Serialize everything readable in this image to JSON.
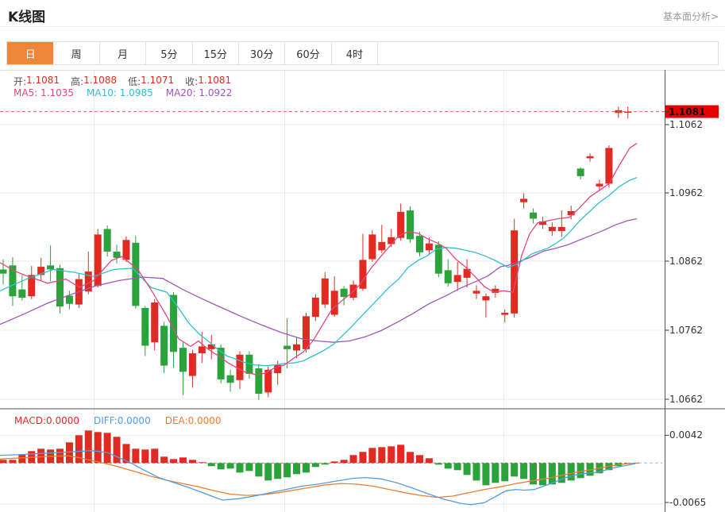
{
  "header": {
    "title": "K线图",
    "link": "基本面分析>"
  },
  "tabs": [
    "日",
    "周",
    "月",
    "5分",
    "15分",
    "30分",
    "60分",
    "4时"
  ],
  "active_tab": "日",
  "legend": {
    "open_label": "开:",
    "open": "1.1081",
    "high_label": "高:",
    "high": "1.1088",
    "low_label": "低:",
    "low": "1.1071",
    "close_label": "收:",
    "close": "1.1081",
    "ma5": "MA5: 1.1035",
    "ma10": "MA10: 1.0985",
    "ma20": "MA20: 1.0922"
  },
  "macd_legend": {
    "macd": "MACD:0.0000",
    "diff": "DIFF:0.0000",
    "dea": "DEA:0.0000"
  },
  "price_tag": "1.1081",
  "colors": {
    "up": "#e12b22",
    "down": "#2aa33b",
    "ma5": "#e3477d",
    "ma10": "#30bfcf",
    "ma20": "#9e56ba",
    "diff": "#559ce0",
    "dea": "#ee7c2f",
    "price_line": "#e06060",
    "price_tag_bg": "#e60000",
    "grid": "#ebebeb",
    "axis": "#555",
    "tab_active": "#ee8537"
  },
  "chart_data": {
    "type": "candlestick",
    "current_price": 1.1081,
    "y_ticks": [
      1.1062,
      1.0962,
      1.0862,
      1.0762,
      1.0662
    ],
    "y_ticks_labels": [
      "1.1062",
      "1.0962",
      "1.0862",
      "1.0762",
      "1.0662"
    ],
    "macd_ticks": [
      0.0042,
      -0.0065
    ],
    "macd_ticks_labels": [
      "0.0042",
      "-0.0065"
    ],
    "candles": [
      [
        1.0851,
        1.0866,
        1.0829,
        1.0845
      ],
      [
        1.0857,
        1.0869,
        1.0798,
        1.0812
      ],
      [
        1.0822,
        1.0843,
        1.0806,
        1.081
      ],
      [
        1.0812,
        1.0856,
        1.0808,
        1.0843
      ],
      [
        1.0843,
        1.0868,
        1.0834,
        1.0855
      ],
      [
        1.0857,
        1.0886,
        1.0834,
        1.0851
      ],
      [
        1.0853,
        1.0858,
        1.0787,
        1.0797
      ],
      [
        1.0813,
        1.082,
        1.0793,
        1.0801
      ],
      [
        1.08,
        1.0845,
        1.0795,
        1.0837
      ],
      [
        1.0819,
        1.0877,
        1.0815,
        1.0848
      ],
      [
        1.0827,
        1.091,
        1.0825,
        1.0902
      ],
      [
        1.091,
        1.0915,
        1.087,
        1.0877
      ],
      [
        1.0877,
        1.0887,
        1.086,
        1.0868
      ],
      [
        1.0865,
        1.0899,
        1.0862,
        1.0894
      ],
      [
        1.089,
        1.09,
        1.0794,
        1.0798
      ],
      [
        1.0795,
        1.0798,
        1.0725,
        1.074
      ],
      [
        1.0745,
        1.0808,
        1.0733,
        1.0803
      ],
      [
        1.0769,
        1.0775,
        1.07,
        1.0711
      ],
      [
        1.0814,
        1.0818,
        1.0708,
        1.0731
      ],
      [
        1.0737,
        1.0745,
        1.0668,
        1.0702
      ],
      [
        1.0696,
        1.0734,
        1.0679,
        1.0729
      ],
      [
        1.0729,
        1.076,
        1.0715,
        1.0739
      ],
      [
        1.0735,
        1.0756,
        1.072,
        1.0742
      ],
      [
        1.0737,
        1.0742,
        1.0685,
        1.0691
      ],
      [
        1.0697,
        1.0705,
        1.0673,
        1.0686
      ],
      [
        1.069,
        1.0732,
        1.0677,
        1.0727
      ],
      [
        1.0727,
        1.0732,
        1.0692,
        1.0699
      ],
      [
        1.0707,
        1.0713,
        1.0661,
        1.067
      ],
      [
        1.0672,
        1.071,
        1.0665,
        1.0705
      ],
      [
        1.07,
        1.0718,
        1.0683,
        1.0712
      ],
      [
        1.074,
        1.078,
        1.0707,
        1.0735
      ],
      [
        1.0733,
        1.0752,
        1.0722,
        1.0742
      ],
      [
        1.0735,
        1.0788,
        1.073,
        1.0783
      ],
      [
        1.0782,
        1.0815,
        1.0776,
        1.081
      ],
      [
        1.08,
        1.0847,
        1.0795,
        1.0838
      ],
      [
        1.0785,
        1.0841,
        1.0782,
        1.082
      ],
      [
        1.0823,
        1.0827,
        1.0799,
        1.0811
      ],
      [
        1.081,
        1.0835,
        1.0806,
        1.0829
      ],
      [
        1.0823,
        1.0903,
        1.082,
        1.0865
      ],
      [
        1.0866,
        1.0908,
        1.0862,
        1.0902
      ],
      [
        1.0879,
        1.0916,
        1.0875,
        1.0891
      ],
      [
        1.0888,
        1.091,
        1.0884,
        1.0898
      ],
      [
        1.0897,
        1.0947,
        1.0893,
        1.0935
      ],
      [
        1.0937,
        1.0943,
        1.089,
        1.0895
      ],
      [
        1.09,
        1.0906,
        1.087,
        1.0876
      ],
      [
        1.0879,
        1.0898,
        1.0873,
        1.0889
      ],
      [
        1.0887,
        1.0892,
        1.084,
        1.0845
      ],
      [
        1.085,
        1.0866,
        1.0826,
        1.0831
      ],
      [
        1.0833,
        1.0862,
        1.082,
        1.0843
      ],
      [
        1.0839,
        1.0866,
        1.0825,
        1.0852
      ],
      [
        1.0816,
        1.0828,
        1.0808,
        1.082
      ],
      [
        1.0806,
        1.0816,
        1.0781,
        1.0812
      ],
      [
        1.0817,
        1.0828,
        1.081,
        1.0823
      ],
      [
        1.0785,
        1.0793,
        1.0774,
        1.0788
      ],
      [
        1.0787,
        1.0925,
        1.0781,
        1.0908
      ],
      [
        1.0949,
        1.0962,
        1.094,
        1.0954
      ],
      [
        1.0934,
        1.094,
        1.0918,
        1.0925
      ],
      [
        1.0916,
        1.0928,
        1.091,
        1.0921
      ],
      [
        1.0907,
        1.092,
        1.09,
        1.0913
      ],
      [
        1.0907,
        1.0937,
        1.0898,
        1.0913
      ],
      [
        1.093,
        1.0944,
        1.0924,
        1.0936
      ],
      [
        1.0998,
        1.1,
        1.0982,
        1.0987
      ],
      [
        1.1013,
        1.102,
        1.1008,
        1.1016
      ],
      [
        1.0972,
        1.0982,
        1.0966,
        1.0976
      ],
      [
        1.0976,
        1.1032,
        1.097,
        1.1028
      ],
      [
        1.1079,
        1.1088,
        1.1072,
        1.1083
      ],
      [
        1.1081,
        1.1088,
        1.1071,
        1.1081
      ]
    ],
    "ma5_points": [
      [
        0,
        1.0861
      ],
      [
        20,
        1.0848
      ],
      [
        33,
        1.0842
      ],
      [
        60,
        1.0831
      ],
      [
        83,
        1.0837
      ],
      [
        100,
        1.0825
      ],
      [
        118,
        1.0835
      ],
      [
        140,
        1.0864
      ],
      [
        153,
        1.087
      ],
      [
        173,
        1.0852
      ],
      [
        190,
        1.0822
      ],
      [
        210,
        1.0783
      ],
      [
        225,
        1.075
      ],
      [
        240,
        1.0739
      ],
      [
        250,
        1.0747
      ],
      [
        262,
        1.0735
      ],
      [
        274,
        1.0726
      ],
      [
        286,
        1.0716
      ],
      [
        298,
        1.0708
      ],
      [
        310,
        1.0701
      ],
      [
        322,
        1.0698
      ],
      [
        334,
        1.07
      ],
      [
        346,
        1.0708
      ],
      [
        358,
        1.0712
      ],
      [
        370,
        1.0722
      ],
      [
        382,
        1.0731
      ],
      [
        394,
        1.0747
      ],
      [
        406,
        1.077
      ],
      [
        418,
        1.0793
      ],
      [
        430,
        1.0805
      ],
      [
        442,
        1.0816
      ],
      [
        454,
        1.083
      ],
      [
        466,
        1.0851
      ],
      [
        478,
        1.0868
      ],
      [
        490,
        1.0884
      ],
      [
        502,
        1.09
      ],
      [
        514,
        1.0906
      ],
      [
        526,
        1.0904
      ],
      [
        538,
        1.0896
      ],
      [
        550,
        1.089
      ],
      [
        562,
        1.0882
      ],
      [
        574,
        1.0866
      ],
      [
        586,
        1.0855
      ],
      [
        598,
        1.0841
      ],
      [
        610,
        1.0826
      ],
      [
        622,
        1.0818
      ],
      [
        634,
        1.082
      ],
      [
        646,
        1.0818
      ],
      [
        657,
        1.0872
      ],
      [
        667,
        1.0903
      ],
      [
        677,
        1.0919
      ],
      [
        690,
        1.0922
      ],
      [
        703,
        1.0925
      ],
      [
        717,
        1.0927
      ],
      [
        730,
        1.0941
      ],
      [
        743,
        1.0957
      ],
      [
        757,
        1.0968
      ],
      [
        767,
        1.0976
      ],
      [
        780,
        1.1003
      ],
      [
        793,
        1.1028
      ],
      [
        802,
        1.1035
      ]
    ],
    "ma10_points": [
      [
        0,
        1.082
      ],
      [
        35,
        1.0838
      ],
      [
        67,
        1.0851
      ],
      [
        93,
        1.0847
      ],
      [
        118,
        1.0841
      ],
      [
        143,
        1.0851
      ],
      [
        167,
        1.0853
      ],
      [
        190,
        1.0825
      ],
      [
        210,
        1.0818
      ],
      [
        225,
        1.0795
      ],
      [
        237,
        1.0774
      ],
      [
        250,
        1.0758
      ],
      [
        262,
        1.0747
      ],
      [
        274,
        1.0735
      ],
      [
        286,
        1.0725
      ],
      [
        298,
        1.072
      ],
      [
        310,
        1.0715
      ],
      [
        322,
        1.0712
      ],
      [
        334,
        1.0711
      ],
      [
        346,
        1.0712
      ],
      [
        358,
        1.0714
      ],
      [
        370,
        1.0715
      ],
      [
        382,
        1.0718
      ],
      [
        394,
        1.0725
      ],
      [
        406,
        1.0732
      ],
      [
        420,
        1.0742
      ],
      [
        442,
        1.0767
      ],
      [
        466,
        1.0796
      ],
      [
        490,
        1.0825
      ],
      [
        502,
        1.0837
      ],
      [
        514,
        1.0854
      ],
      [
        526,
        1.0864
      ],
      [
        538,
        1.0871
      ],
      [
        550,
        1.0881
      ],
      [
        562,
        1.0883
      ],
      [
        574,
        1.0882
      ],
      [
        586,
        1.0879
      ],
      [
        598,
        1.0876
      ],
      [
        610,
        1.0871
      ],
      [
        622,
        1.0865
      ],
      [
        634,
        1.0858
      ],
      [
        640,
        1.0854
      ],
      [
        652,
        1.0859
      ],
      [
        670,
        1.0874
      ],
      [
        690,
        1.0882
      ],
      [
        700,
        1.0889
      ],
      [
        710,
        1.0897
      ],
      [
        717,
        1.0905
      ],
      [
        730,
        1.0922
      ],
      [
        743,
        1.0936
      ],
      [
        753,
        1.0947
      ],
      [
        767,
        1.0959
      ],
      [
        780,
        1.0972
      ],
      [
        793,
        1.0981
      ],
      [
        802,
        1.0985
      ]
    ],
    "ma20_points": [
      [
        0,
        1.0771
      ],
      [
        30,
        1.0786
      ],
      [
        60,
        1.0802
      ],
      [
        90,
        1.0815
      ],
      [
        120,
        1.0827
      ],
      [
        150,
        1.0835
      ],
      [
        180,
        1.084
      ],
      [
        205,
        1.0838
      ],
      [
        230,
        1.0822
      ],
      [
        255,
        1.0808
      ],
      [
        280,
        1.0795
      ],
      [
        305,
        1.0782
      ],
      [
        330,
        1.077
      ],
      [
        355,
        1.0759
      ],
      [
        380,
        1.075
      ],
      [
        400,
        1.0747
      ],
      [
        420,
        1.0745
      ],
      [
        440,
        1.0747
      ],
      [
        460,
        1.0753
      ],
      [
        480,
        1.0762
      ],
      [
        500,
        1.0774
      ],
      [
        520,
        1.0787
      ],
      [
        540,
        1.0801
      ],
      [
        560,
        1.0812
      ],
      [
        580,
        1.0824
      ],
      [
        600,
        1.0834
      ],
      [
        615,
        1.0842
      ],
      [
        630,
        1.0855
      ],
      [
        640,
        1.0857
      ],
      [
        655,
        1.0863
      ],
      [
        670,
        1.087
      ],
      [
        685,
        1.0878
      ],
      [
        700,
        1.0882
      ],
      [
        715,
        1.0887
      ],
      [
        730,
        1.0894
      ],
      [
        745,
        1.0901
      ],
      [
        760,
        1.0908
      ],
      [
        775,
        1.0916
      ],
      [
        790,
        1.0922
      ],
      [
        802,
        1.0925
      ]
    ],
    "macd_histogram": [
      0.00048,
      0.00048,
      0.00132,
      0.0018,
      0.00216,
      0.00204,
      0.00216,
      0.00312,
      0.0042,
      0.00492,
      0.00468,
      0.00456,
      0.00396,
      0.00288,
      0.00216,
      0.00204,
      0.00216,
      0.00096,
      0.0006,
      0.00084,
      0.00048,
      0.00012,
      -0.00048,
      -0.00096,
      -0.00084,
      -0.00144,
      -0.0012,
      -0.00204,
      -0.00264,
      -0.0024,
      -0.00216,
      -0.00168,
      -0.00144,
      -0.0006,
      -0.00024,
      0.00024,
      0.00048,
      0.0012,
      0.00168,
      0.00228,
      0.0024,
      0.00252,
      0.00276,
      0.00168,
      0.0012,
      0.00072,
      -0.00024,
      -0.00084,
      -0.00108,
      -0.0018,
      -0.00264,
      -0.00336,
      -0.003,
      -0.00276,
      -0.00204,
      -0.0024,
      -0.00324,
      -0.00336,
      -0.00324,
      -0.003,
      -0.00264,
      -0.00228,
      -0.00192,
      -0.00156,
      -0.00108,
      -0.00048,
      -0.00012
    ],
    "diff_points": [
      [
        0,
        0.00116
      ],
      [
        30,
        0.0013
      ],
      [
        60,
        0.0015
      ],
      [
        90,
        0.0017
      ],
      [
        115,
        0.00187
      ],
      [
        135,
        0.0016
      ],
      [
        150,
        0.0008
      ],
      [
        165,
        0.0
      ],
      [
        180,
        -0.001
      ],
      [
        200,
        -0.0022
      ],
      [
        220,
        -0.003
      ],
      [
        240,
        -0.0038
      ],
      [
        260,
        -0.0047
      ],
      [
        280,
        -0.0056
      ],
      [
        300,
        -0.0054
      ],
      [
        320,
        -0.005
      ],
      [
        340,
        -0.0045
      ],
      [
        360,
        -0.004
      ],
      [
        380,
        -0.0035
      ],
      [
        400,
        -0.0032
      ],
      [
        420,
        -0.0028
      ],
      [
        445,
        -0.0023
      ],
      [
        460,
        -0.0022
      ],
      [
        480,
        -0.0024
      ],
      [
        500,
        -0.003
      ],
      [
        520,
        -0.0038
      ],
      [
        540,
        -0.0047
      ],
      [
        560,
        -0.0055
      ],
      [
        580,
        -0.0061
      ],
      [
        593,
        -0.0063
      ],
      [
        610,
        -0.006
      ],
      [
        625,
        -0.005
      ],
      [
        637,
        -0.0042
      ],
      [
        650,
        -0.004
      ],
      [
        660,
        -0.0041
      ],
      [
        673,
        -0.004
      ],
      [
        687,
        -0.0034
      ],
      [
        700,
        -0.0028
      ],
      [
        712,
        -0.0022
      ],
      [
        725,
        -0.0018
      ],
      [
        740,
        -0.0015
      ],
      [
        753,
        -0.0014
      ],
      [
        770,
        -0.0008
      ],
      [
        787,
        -0.0004
      ],
      [
        800,
        -0.0001
      ]
    ],
    "dea_points": [
      [
        0,
        0.0006
      ],
      [
        30,
        0.0008
      ],
      [
        60,
        0.001
      ],
      [
        85,
        0.0011
      ],
      [
        100,
        0.0008
      ],
      [
        115,
        0.0004
      ],
      [
        130,
        0.0
      ],
      [
        150,
        -0.0006
      ],
      [
        170,
        -0.0013
      ],
      [
        190,
        -0.002
      ],
      [
        210,
        -0.0026
      ],
      [
        230,
        -0.0031
      ],
      [
        250,
        -0.0036
      ],
      [
        270,
        -0.0042
      ],
      [
        290,
        -0.0047
      ],
      [
        310,
        -0.0049
      ],
      [
        330,
        -0.0048
      ],
      [
        350,
        -0.0045
      ],
      [
        370,
        -0.0041
      ],
      [
        390,
        -0.0037
      ],
      [
        410,
        -0.0033
      ],
      [
        430,
        -0.0031
      ],
      [
        450,
        -0.0032
      ],
      [
        470,
        -0.0035
      ],
      [
        490,
        -0.004
      ],
      [
        510,
        -0.0045
      ],
      [
        530,
        -0.0049
      ],
      [
        550,
        -0.0052
      ],
      [
        570,
        -0.005
      ],
      [
        590,
        -0.0045
      ],
      [
        610,
        -0.004
      ],
      [
        630,
        -0.0036
      ],
      [
        650,
        -0.0031
      ],
      [
        670,
        -0.0027
      ],
      [
        690,
        -0.0023
      ],
      [
        710,
        -0.0018
      ],
      [
        730,
        -0.0013
      ],
      [
        750,
        -0.0009
      ],
      [
        770,
        -0.0004
      ],
      [
        790,
        -0.0001
      ],
      [
        805,
        0.0
      ]
    ]
  }
}
